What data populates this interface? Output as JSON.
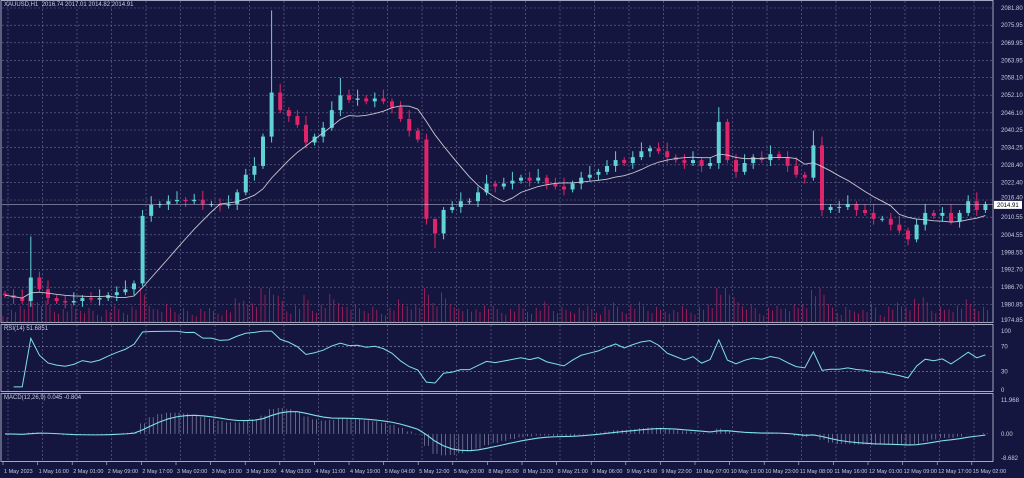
{
  "chart_data": {
    "type": "candlestick",
    "title": "XAUUSD,H1",
    "ohlc_header": "2016.74 2017.01 2014.82 2014.91",
    "current_price": "2014.91",
    "ylim": [
      1974.85,
      2081.8
    ],
    "y_ticks": [
      "2081.80",
      "2075.95",
      "2069.95",
      "2063.95",
      "2058.10",
      "2052.10",
      "2046.10",
      "2040.25",
      "2034.25",
      "2028.40",
      "2022.40",
      "2016.40",
      "2010.55",
      "2004.55",
      "1998.55",
      "1992.70",
      "1986.70",
      "1980.85",
      "1974.85"
    ],
    "x_ticks": [
      "1 May 2023",
      "1 May 16:00",
      "2 May 01:00",
      "2 May 09:00",
      "2 May 17:00",
      "3 May 02:00",
      "3 May 10:00",
      "3 May 18:00",
      "4 May 03:00",
      "4 May 11:00",
      "4 May 19:00",
      "5 May 04:00",
      "5 May 12:00",
      "5 May 20:00",
      "8 May 05:00",
      "8 May 13:00",
      "8 May 21:00",
      "9 May 06:00",
      "9 May 14:00",
      "9 May 22:00",
      "10 May 07:00",
      "10 May 15:00",
      "10 May 23:00",
      "11 May 08:00",
      "11 May 16:00",
      "12 May 01:00",
      "12 May 09:00",
      "12 May 17:00",
      "15 May 02:00"
    ],
    "closes": [
      1984,
      1983,
      1982,
      1990,
      1986,
      1983,
      1982,
      1981.5,
      1982,
      1983,
      1982.5,
      1983,
      1984,
      1985,
      1986,
      1988,
      2011,
      2014.7,
      2015,
      2016,
      2016.4,
      2016,
      2016.5,
      2015,
      2015,
      2014.5,
      2015,
      2019,
      2025,
      2028,
      2038,
      2053,
      2047,
      2045,
      2042,
      2036,
      2038,
      2041,
      2047,
      2052,
      2050.5,
      2051,
      2050,
      2051,
      2050,
      2048,
      2044,
      2040,
      2037,
      2010,
      2005,
      2013,
      2014,
      2016,
      2016,
      2019,
      2022,
      2021,
      2022,
      2023,
      2024,
      2023,
      2024,
      2022,
      2021,
      2020,
      2022,
      2024,
      2025,
      2026,
      2028,
      2030,
      2029,
      2031,
      2033,
      2034,
      2033,
      2031,
      2030,
      2029,
      2030,
      2028,
      2029,
      2043,
      2030,
      2026,
      2029,
      2031,
      2030,
      2032,
      2031,
      2028,
      2025,
      2024,
      2035,
      2013,
      2014,
      2014,
      2015,
      2013,
      2012,
      2010,
      2010,
      2008,
      2006,
      2003,
      2008,
      2012,
      2011,
      2012,
      2009,
      2012,
      2016,
      2013,
      2014.91
    ],
    "notable_highs": [
      {
        "i": 3,
        "high": 2004
      },
      {
        "i": 31,
        "high": 2081
      },
      {
        "i": 39,
        "high": 2058
      },
      {
        "i": 83,
        "high": 2048
      },
      {
        "i": 94,
        "high": 2040
      },
      {
        "i": 50,
        "high": 2008
      }
    ],
    "notable_lows": [
      {
        "i": 50,
        "low": 2000
      }
    ],
    "bull_color": "#5fd3d6",
    "bear_color": "#e0246a",
    "ma_color": "#c8c8d0",
    "rsi": {
      "label": "RSI(14) 51.6851",
      "ticks": [
        "100",
        "70",
        "30",
        "0"
      ],
      "levels": [
        100,
        70,
        30,
        0
      ]
    },
    "macd": {
      "label": "MACD(12,26,9) 0.045 -0.804",
      "ticks": [
        "11.968",
        "0.00",
        "-8.682"
      ],
      "range": [
        -8.682,
        11.968
      ]
    }
  }
}
